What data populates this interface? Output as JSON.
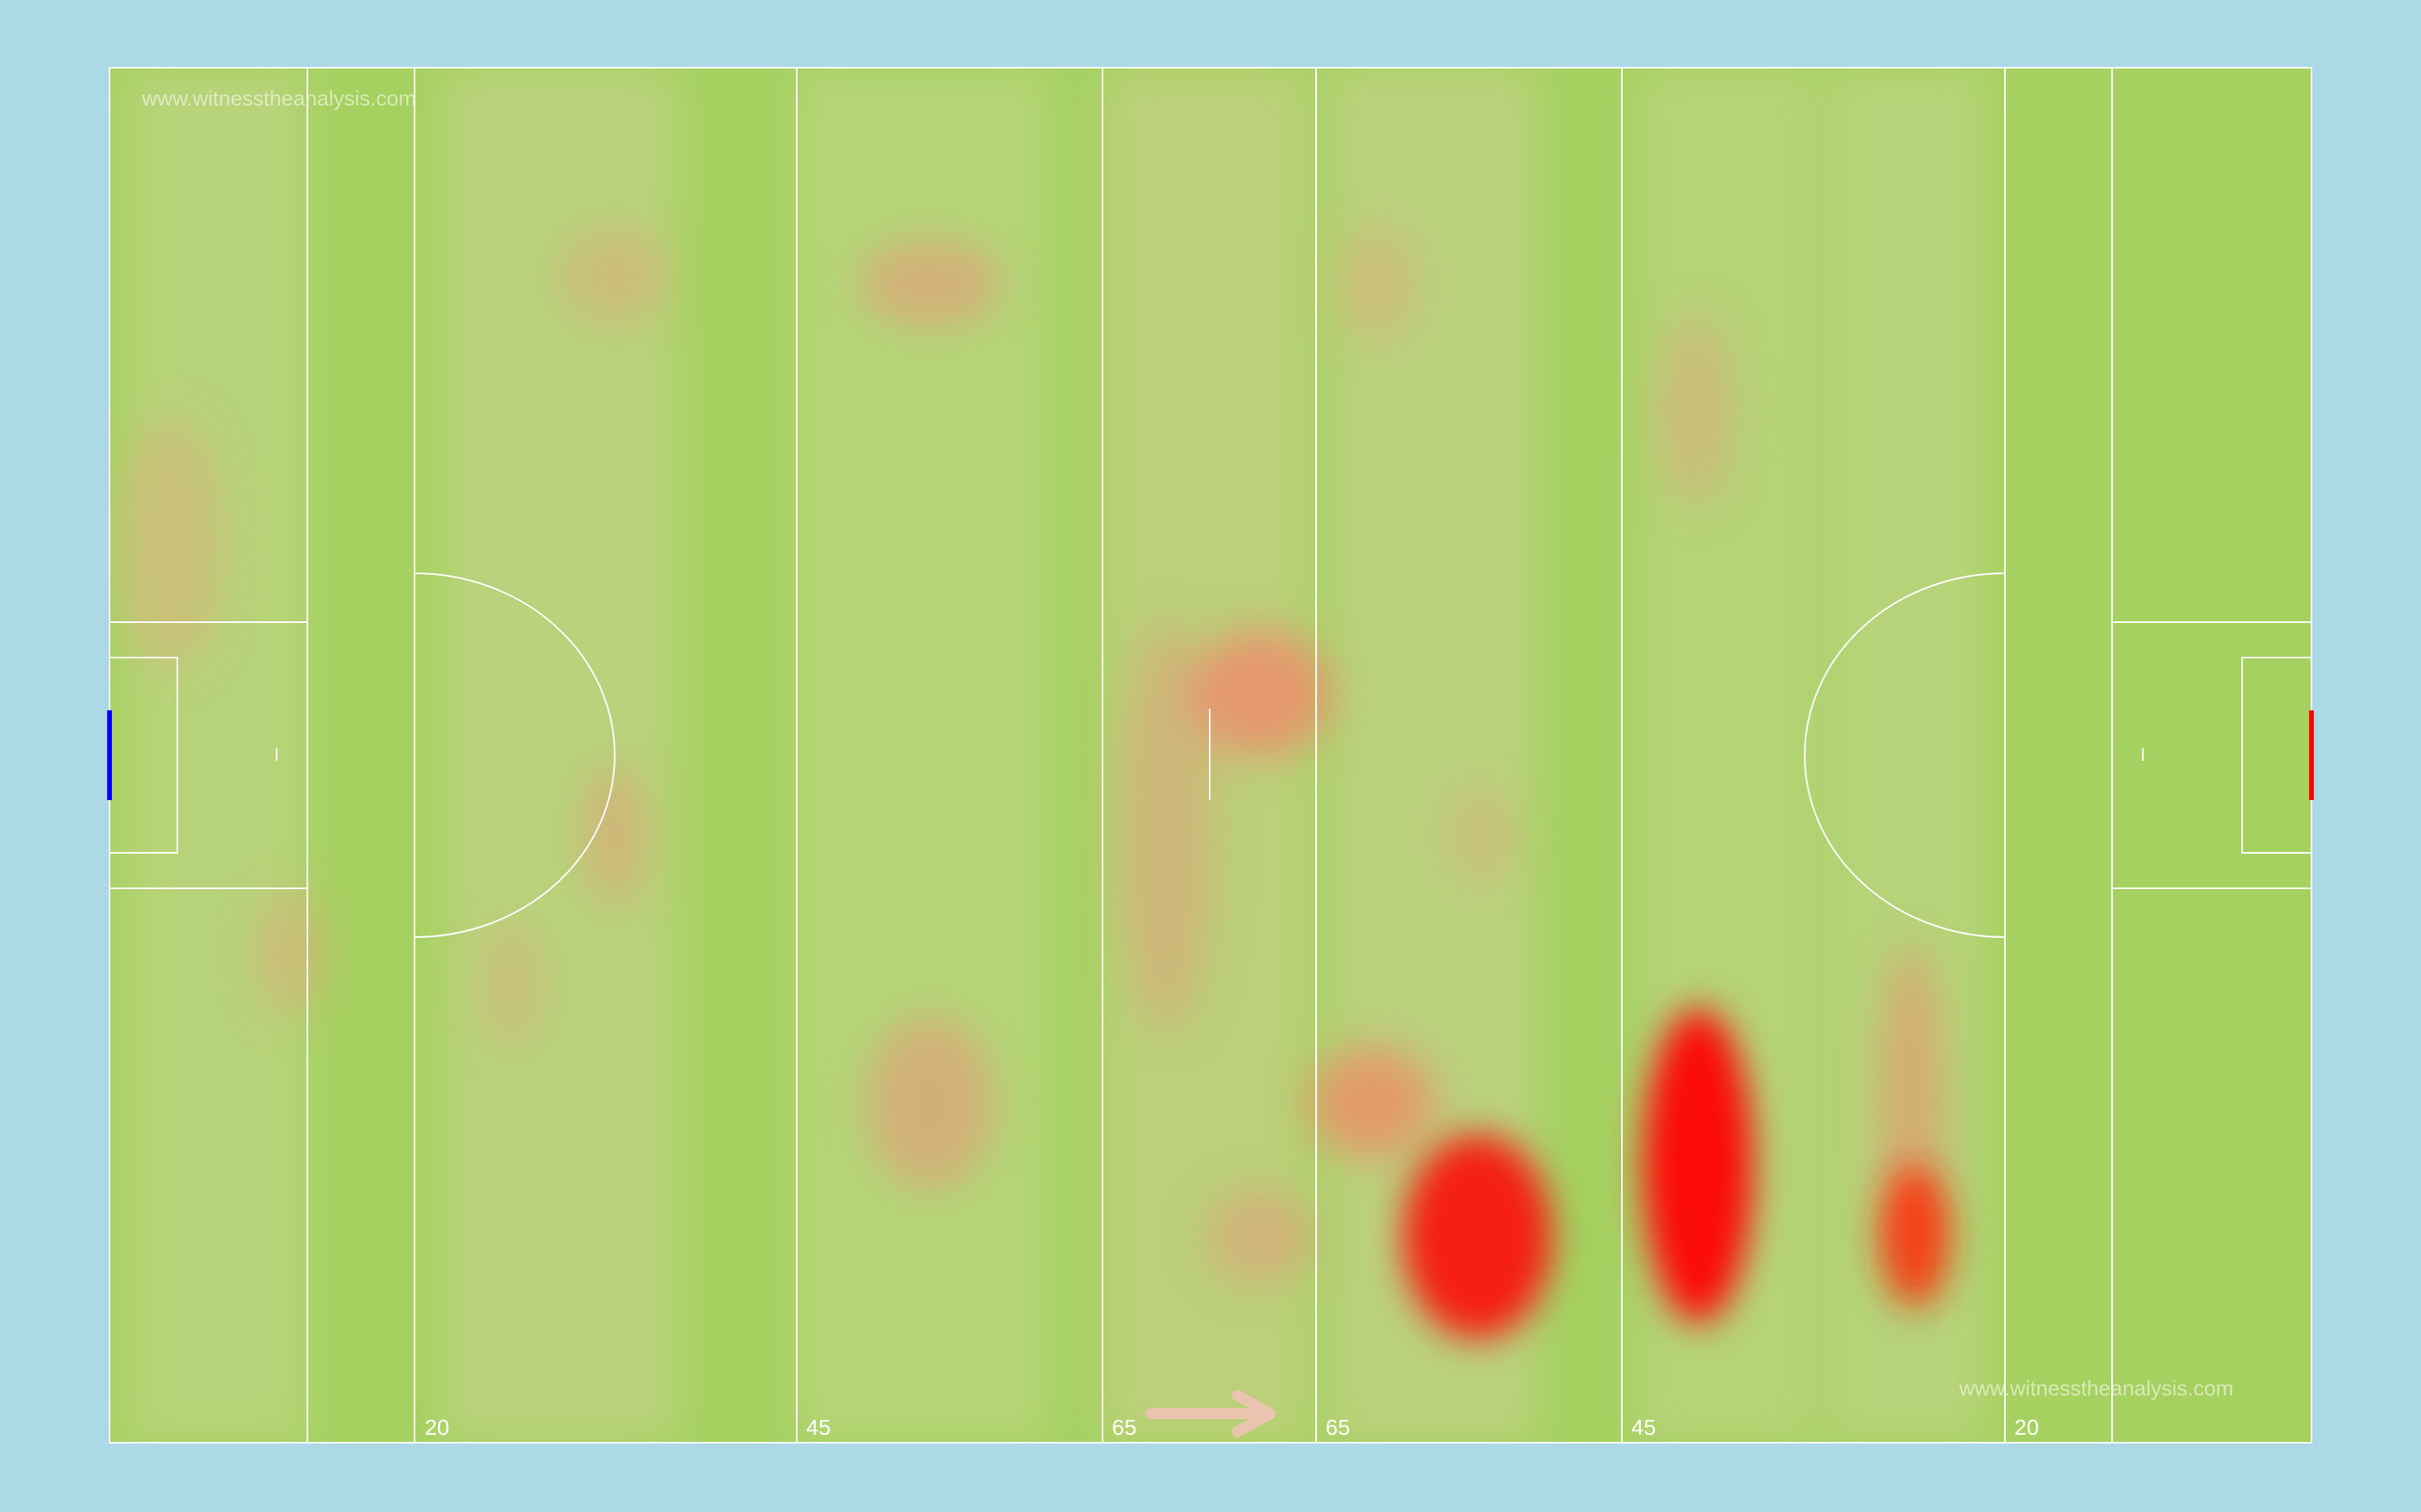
{
  "watermark": "www.witnesstheanalysis.com",
  "line_labels": [
    "20",
    "45",
    "65",
    "65",
    "45",
    "20"
  ],
  "colors": {
    "background": "#add8e6",
    "pitch": "#a5d160",
    "pitch_light": "#b9d47c",
    "lines": "#ffffff",
    "hot": "#ff0000",
    "left_goal": "#0000ff",
    "right_goal": "#ff0000",
    "direction_arrow": "#f2c2b8"
  },
  "direction_arrow": {
    "icon": "right-arrow-icon",
    "meaning": "direction of play"
  }
}
